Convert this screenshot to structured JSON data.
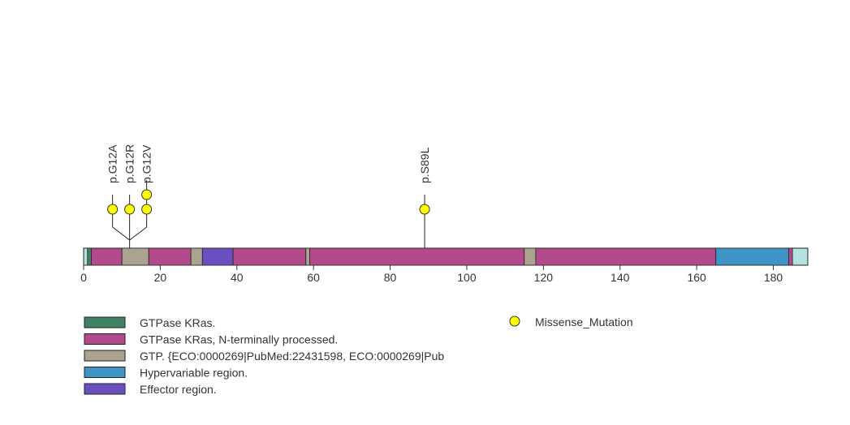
{
  "chart_data": {
    "type": "lollipop",
    "protein_length": 189,
    "xlim": [
      0,
      189
    ],
    "x_ticks": [
      0,
      20,
      40,
      60,
      80,
      100,
      120,
      140,
      160,
      180
    ],
    "backbone_color": "#b2e2e2",
    "segments": [
      {
        "start": 1,
        "end": 2,
        "color": "#418264",
        "legend": 0
      },
      {
        "start": 2,
        "end": 10,
        "color": "#b34a8c",
        "legend": 1
      },
      {
        "start": 10,
        "end": 17,
        "color": "#aba290",
        "legend": 2
      },
      {
        "start": 17,
        "end": 28,
        "color": "#b34a8c",
        "legend": 1
      },
      {
        "start": 28,
        "end": 31,
        "color": "#aba290",
        "legend": 2
      },
      {
        "start": 31,
        "end": 39,
        "color": "#6a4fc0",
        "legend": 4
      },
      {
        "start": 39,
        "end": 58,
        "color": "#b34a8c",
        "legend": 1
      },
      {
        "start": 58,
        "end": 59,
        "color": "#aba290",
        "legend": 2
      },
      {
        "start": 59,
        "end": 115,
        "color": "#b34a8c",
        "legend": 1
      },
      {
        "start": 115,
        "end": 118,
        "color": "#aba290",
        "legend": 2
      },
      {
        "start": 118,
        "end": 165,
        "color": "#b34a8c",
        "legend": 1
      },
      {
        "start": 165,
        "end": 184,
        "color": "#3e94c5",
        "legend": 3
      },
      {
        "start": 184,
        "end": 185,
        "color": "#b34a8c",
        "legend": 1
      }
    ],
    "mutation_sites": [
      {
        "position": 12,
        "count": 3
      },
      {
        "position": 89,
        "count": 1
      }
    ],
    "mutations": [
      {
        "label": "p.G12A",
        "site": 0,
        "slot": 0,
        "stack": 1
      },
      {
        "label": "p.G12R",
        "site": 0,
        "slot": 1,
        "stack": 1
      },
      {
        "label": "p.G12V",
        "site": 0,
        "slot": 2,
        "stack": 2
      },
      {
        "label": "p.S89L",
        "site": 1,
        "slot": 0,
        "stack": 1
      }
    ],
    "legend_domains": [
      {
        "label": "GTPase KRas.",
        "color": "#418264"
      },
      {
        "label": "GTPase KRas, N-terminally processed.",
        "color": "#b34a8c"
      },
      {
        "label": "GTP. {ECO:0000269|PubMed:22431598, ECO:0000269|Pub",
        "color": "#aba290"
      },
      {
        "label": "Hypervariable region.",
        "color": "#3e94c5"
      },
      {
        "label": "Effector region.",
        "color": "#6a4fc0"
      }
    ],
    "legend_mutation": {
      "label": "Missense_Mutation",
      "color": "#ffff00"
    }
  }
}
